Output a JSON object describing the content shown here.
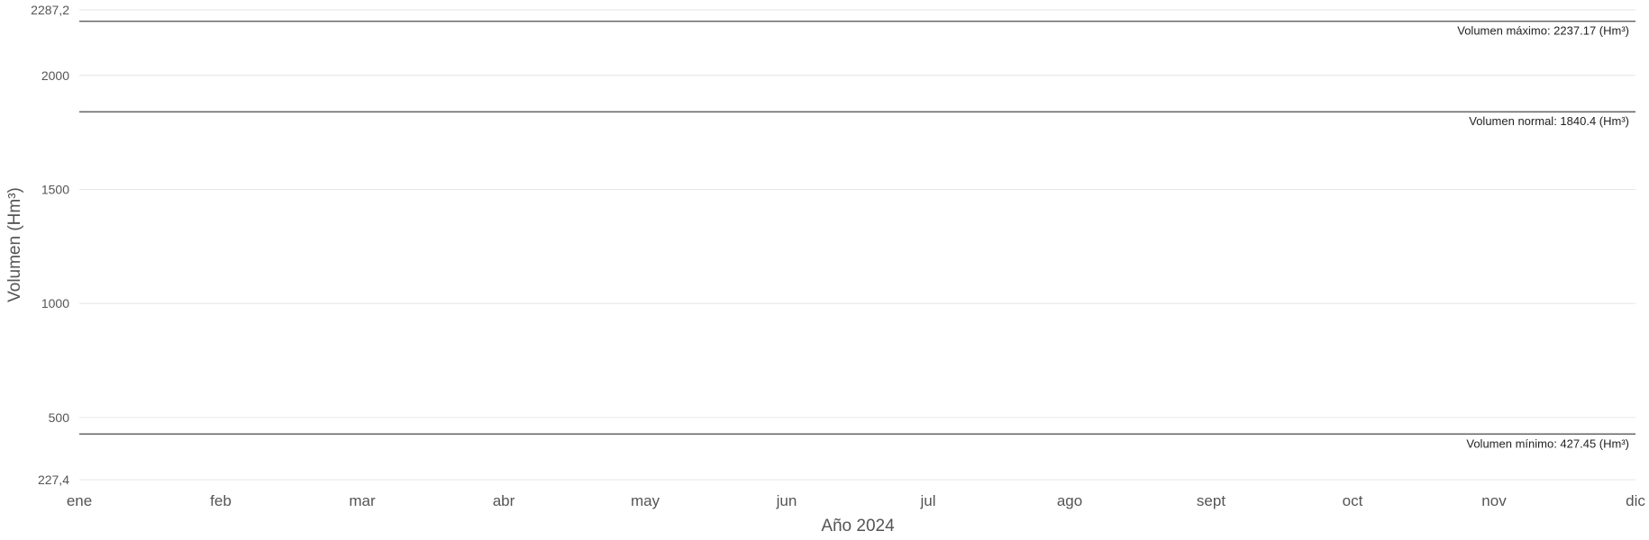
{
  "chart_data": {
    "type": "line",
    "title": "",
    "xlabel": "Año 2024",
    "ylabel": "Volumen (Hm³)",
    "x_categories": [
      "ene",
      "feb",
      "mar",
      "abr",
      "may",
      "jun",
      "jul",
      "ago",
      "sept",
      "oct",
      "nov",
      "dic"
    ],
    "ylim": [
      227.4,
      2287.2
    ],
    "y_ticks": [
      {
        "value": 227.4,
        "label": "227,4"
      },
      {
        "value": 500,
        "label": "500"
      },
      {
        "value": 1000,
        "label": "1000"
      },
      {
        "value": 1500,
        "label": "1500"
      },
      {
        "value": 2000,
        "label": "2000"
      },
      {
        "value": 2287.2,
        "label": "2287,2"
      }
    ],
    "reference_lines": [
      {
        "name": "maximo",
        "value": 2237.17,
        "label": "Volumen máximo: 2237.17 (Hm³)"
      },
      {
        "name": "normal",
        "value": 1840.4,
        "label": "Volumen normal: 1840.4 (Hm³)"
      },
      {
        "name": "minimo",
        "value": 427.45,
        "label": "Volumen mínimo: 427.45 (Hm³)"
      }
    ],
    "series": [],
    "grid": true,
    "legend": "none"
  },
  "colors": {
    "grid": "#e6e6e6",
    "reference_line": "#666666",
    "tick_text": "#555555",
    "label_text": "#222222"
  }
}
